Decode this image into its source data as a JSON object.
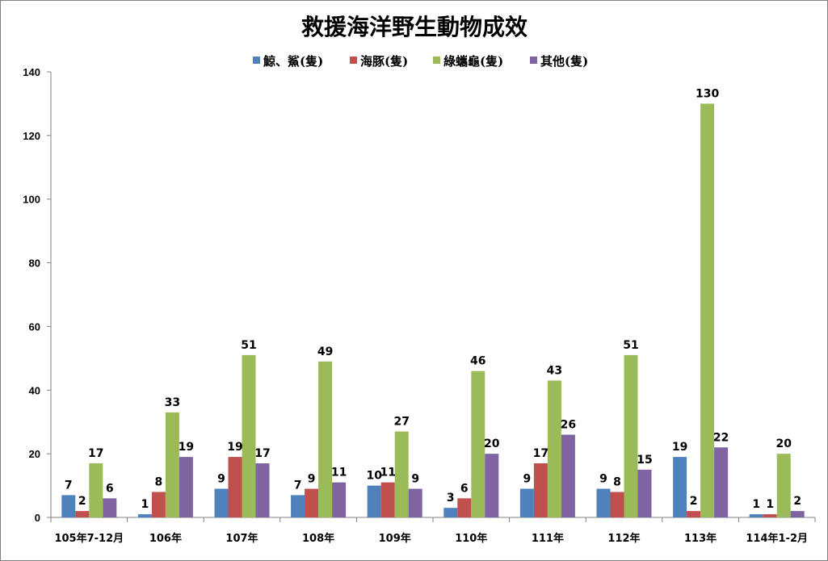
{
  "chart_data": {
    "type": "bar",
    "title": "救援海洋野生動物成效",
    "xlabel": "",
    "ylabel": "",
    "ylim": [
      0,
      140
    ],
    "yticks": [
      0,
      20,
      40,
      60,
      80,
      100,
      120,
      140
    ],
    "grid": false,
    "legend_position": "top",
    "categories": [
      "105年7-12月",
      "106年",
      "107年",
      "108年",
      "109年",
      "110年",
      "111年",
      "112年",
      "113年",
      "114年1-2月"
    ],
    "series": [
      {
        "name": "鯨、鯊(隻)",
        "color": "#4F81BD",
        "values": [
          7,
          1,
          9,
          7,
          10,
          3,
          9,
          9,
          19,
          1
        ]
      },
      {
        "name": "海豚(隻)",
        "color": "#C0504D",
        "values": [
          2,
          8,
          19,
          9,
          11,
          6,
          17,
          8,
          2,
          1
        ]
      },
      {
        "name": "綠蠵龜(隻)",
        "color": "#9BBB59",
        "values": [
          17,
          33,
          51,
          49,
          27,
          46,
          43,
          51,
          130,
          20
        ]
      },
      {
        "name": "其他(隻)",
        "color": "#8064A2",
        "values": [
          6,
          19,
          17,
          11,
          9,
          20,
          26,
          15,
          22,
          2
        ]
      }
    ]
  }
}
